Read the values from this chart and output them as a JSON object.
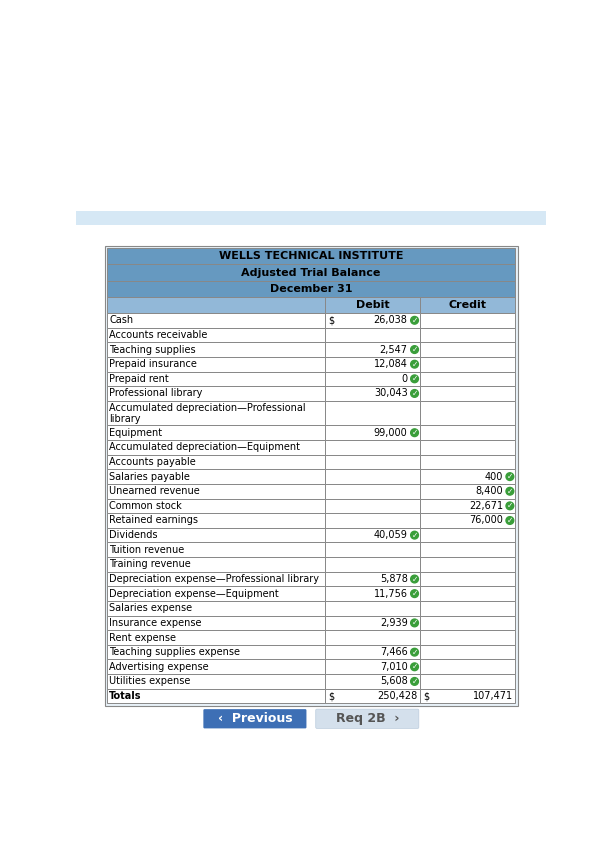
{
  "title1": "WELLS TECHNICAL INSTITUTE",
  "title2": "Adjusted Trial Balance",
  "title3": "December 31",
  "header_debit": "Debit",
  "header_credit": "Credit",
  "rows": [
    {
      "label": "Cash",
      "debit": "26,038",
      "credit": "",
      "debit_check": true,
      "credit_check": false,
      "dollar_debit": true,
      "dollar_credit": false
    },
    {
      "label": "Accounts receivable",
      "debit": "",
      "credit": "",
      "debit_check": false,
      "credit_check": false,
      "dollar_debit": false,
      "dollar_credit": false
    },
    {
      "label": "Teaching supplies",
      "debit": "2,547",
      "credit": "",
      "debit_check": true,
      "credit_check": false,
      "dollar_debit": false,
      "dollar_credit": false
    },
    {
      "label": "Prepaid insurance",
      "debit": "12,084",
      "credit": "",
      "debit_check": true,
      "credit_check": false,
      "dollar_debit": false,
      "dollar_credit": false
    },
    {
      "label": "Prepaid rent",
      "debit": "0",
      "credit": "",
      "debit_check": true,
      "credit_check": false,
      "dollar_debit": false,
      "dollar_credit": false
    },
    {
      "label": "Professional library",
      "debit": "30,043",
      "credit": "",
      "debit_check": true,
      "credit_check": false,
      "dollar_debit": false,
      "dollar_credit": false
    },
    {
      "label": "Accumulated depreciation—Professional\nlibrary",
      "debit": "",
      "credit": "",
      "debit_check": false,
      "credit_check": false,
      "dollar_debit": false,
      "dollar_credit": false
    },
    {
      "label": "Equipment",
      "debit": "99,000",
      "credit": "",
      "debit_check": true,
      "credit_check": false,
      "dollar_debit": false,
      "dollar_credit": false
    },
    {
      "label": "Accumulated depreciation—Equipment",
      "debit": "",
      "credit": "",
      "debit_check": false,
      "credit_check": false,
      "dollar_debit": false,
      "dollar_credit": false
    },
    {
      "label": "Accounts payable",
      "debit": "",
      "credit": "",
      "debit_check": false,
      "credit_check": false,
      "dollar_debit": false,
      "dollar_credit": false
    },
    {
      "label": "Salaries payable",
      "debit": "",
      "credit": "400",
      "debit_check": false,
      "credit_check": true,
      "dollar_debit": false,
      "dollar_credit": false
    },
    {
      "label": "Unearned revenue",
      "debit": "",
      "credit": "8,400",
      "debit_check": false,
      "credit_check": true,
      "dollar_debit": false,
      "dollar_credit": false
    },
    {
      "label": "Common stock",
      "debit": "",
      "credit": "22,671",
      "debit_check": false,
      "credit_check": true,
      "dollar_debit": false,
      "dollar_credit": false
    },
    {
      "label": "Retained earnings",
      "debit": "",
      "credit": "76,000",
      "debit_check": false,
      "credit_check": true,
      "dollar_debit": false,
      "dollar_credit": false
    },
    {
      "label": "Dividends",
      "debit": "40,059",
      "credit": "",
      "debit_check": true,
      "credit_check": false,
      "dollar_debit": false,
      "dollar_credit": false
    },
    {
      "label": "Tuition revenue",
      "debit": "",
      "credit": "",
      "debit_check": false,
      "credit_check": false,
      "dollar_debit": false,
      "dollar_credit": false
    },
    {
      "label": "Training revenue",
      "debit": "",
      "credit": "",
      "debit_check": false,
      "credit_check": false,
      "dollar_debit": false,
      "dollar_credit": false
    },
    {
      "label": "Depreciation expense—Professional library",
      "debit": "5,878",
      "credit": "",
      "debit_check": true,
      "credit_check": false,
      "dollar_debit": false,
      "dollar_credit": false
    },
    {
      "label": "Depreciation expense—Equipment",
      "debit": "11,756",
      "credit": "",
      "debit_check": true,
      "credit_check": false,
      "dollar_debit": false,
      "dollar_credit": false
    },
    {
      "label": "Salaries expense",
      "debit": "",
      "credit": "",
      "debit_check": false,
      "credit_check": false,
      "dollar_debit": false,
      "dollar_credit": false
    },
    {
      "label": "Insurance expense",
      "debit": "2,939",
      "credit": "",
      "debit_check": true,
      "credit_check": false,
      "dollar_debit": false,
      "dollar_credit": false
    },
    {
      "label": "Rent expense",
      "debit": "",
      "credit": "",
      "debit_check": false,
      "credit_check": false,
      "dollar_debit": false,
      "dollar_credit": false
    },
    {
      "label": "Teaching supplies expense",
      "debit": "7,466",
      "credit": "",
      "debit_check": true,
      "credit_check": false,
      "dollar_debit": false,
      "dollar_credit": false
    },
    {
      "label": "Advertising expense",
      "debit": "7,010",
      "credit": "",
      "debit_check": true,
      "credit_check": false,
      "dollar_debit": false,
      "dollar_credit": false
    },
    {
      "label": "Utilities expense",
      "debit": "5,608",
      "credit": "",
      "debit_check": true,
      "credit_check": false,
      "dollar_debit": false,
      "dollar_credit": false
    },
    {
      "label": "Totals",
      "debit": "250,428",
      "credit": "107,471",
      "debit_check": false,
      "credit_check": false,
      "dollar_debit": true,
      "dollar_credit": true,
      "is_total": true
    }
  ],
  "header_bg": "#92b8d8",
  "header_title_bg": "#6699c0",
  "row_bg_white": "#ffffff",
  "border_color": "#888888",
  "text_color": "#000000",
  "check_color": "#3a9e3a",
  "btn_prev_bg": "#3d6fb5",
  "btn_next_bg": "#d4e0ec",
  "btn_text_color": "#ffffff",
  "btn_next_text_color": "#555555",
  "page_bg": "#ffffff",
  "banner_bg": "#d6e8f5",
  "table_outer_bg": "#e8f1f8"
}
